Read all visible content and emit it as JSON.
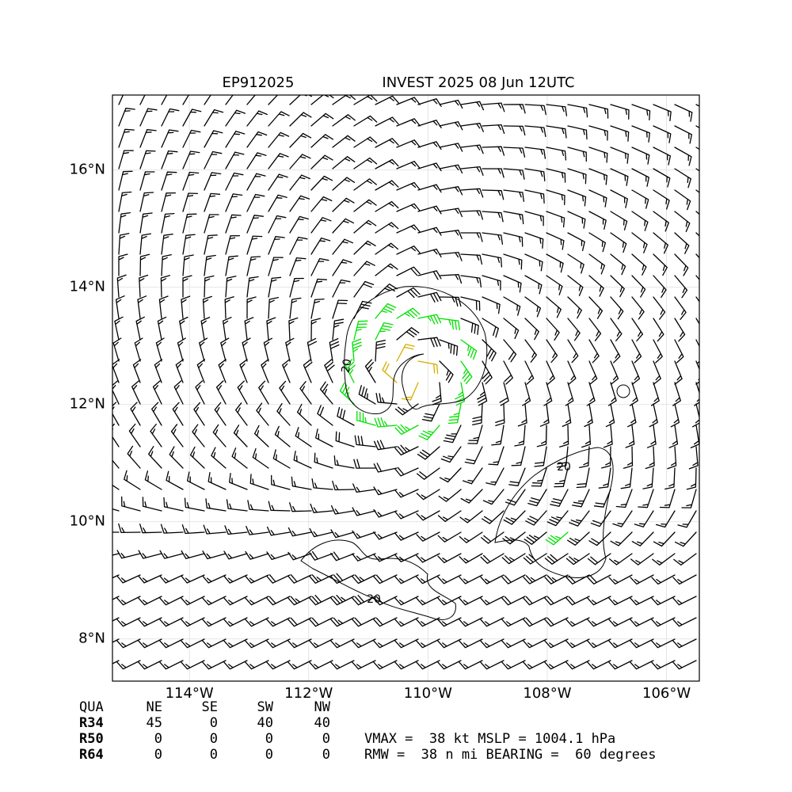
{
  "title_left": "EP912025",
  "title_right": "INVEST 2025 08 Jun 12UTC",
  "map": {
    "xlim": [
      -115.29,
      -105.45
    ],
    "ylim": [
      7.28,
      17.28
    ],
    "xticks": [
      {
        "value": -114,
        "label": "114°W"
      },
      {
        "value": -112,
        "label": "112°W"
      },
      {
        "value": -110,
        "label": "110°W"
      },
      {
        "value": -108,
        "label": "108°W"
      },
      {
        "value": -106,
        "label": "106°W"
      }
    ],
    "yticks": [
      {
        "value": 8,
        "label": "8°N"
      },
      {
        "value": 10,
        "label": "10°N"
      },
      {
        "value": 12,
        "label": "12°N"
      },
      {
        "value": 14,
        "label": "14°N"
      },
      {
        "value": 16,
        "label": "16°N"
      }
    ],
    "grid": true,
    "contour_labels": [
      "20",
      "20",
      "20"
    ]
  },
  "table": {
    "header": [
      "QUA",
      "NE",
      "SE",
      "SW",
      "NW"
    ],
    "rows": [
      [
        "R34",
        "45",
        "0",
        "40",
        "40"
      ],
      [
        "R50",
        "0",
        "0",
        "0",
        "0"
      ],
      [
        "R64",
        "0",
        "0",
        "0",
        "0"
      ]
    ]
  },
  "stats": [
    "VMAX =  38 kt MSLP = 1004.1 hPa",
    "RMW =  38 n mi BEARING =  60 degrees"
  ]
}
